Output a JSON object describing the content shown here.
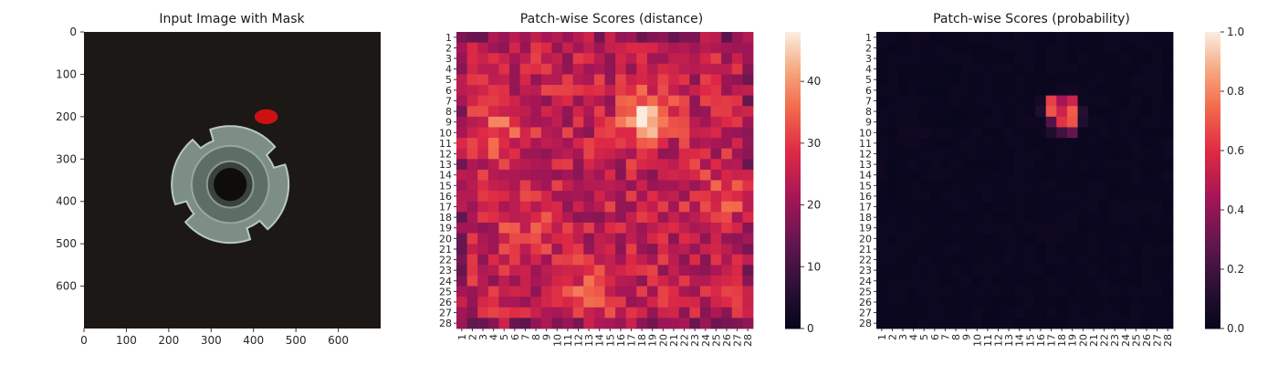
{
  "figure": {
    "panels": [
      {
        "title": "Input Image with Mask"
      },
      {
        "title": "Patch-wise Scores (distance)"
      },
      {
        "title": "Patch-wise Scores (probability)"
      }
    ]
  },
  "chart_data": [
    {
      "type": "image",
      "title": "Input Image with Mask",
      "xlim": [
        0,
        700
      ],
      "ylim": [
        700,
        0
      ],
      "xticks": [
        0,
        100,
        200,
        300,
        400,
        500,
        600
      ],
      "yticks": [
        0,
        100,
        200,
        300,
        400,
        500,
        600
      ],
      "content": "metal nut photograph on dark background",
      "mask": {
        "color": "#cc1111",
        "center": [
          430,
          200
        ],
        "approx_size": [
          55,
          35
        ]
      }
    },
    {
      "type": "heatmap",
      "title": "Patch-wise Scores (distance)",
      "rows": 28,
      "cols": 28,
      "row_labels": [
        "1",
        "2",
        "3",
        "4",
        "5",
        "6",
        "7",
        "8",
        "9",
        "10",
        "11",
        "12",
        "13",
        "14",
        "15",
        "16",
        "17",
        "18",
        "19",
        "20",
        "21",
        "22",
        "23",
        "24",
        "25",
        "26",
        "27",
        "28"
      ],
      "col_labels": [
        "1",
        "2",
        "3",
        "4",
        "5",
        "6",
        "7",
        "8",
        "9",
        "10",
        "11",
        "12",
        "13",
        "14",
        "15",
        "16",
        "17",
        "18",
        "19",
        "20",
        "21",
        "22",
        "23",
        "24",
        "25",
        "26",
        "27",
        "28"
      ],
      "colorbar": {
        "min": 0,
        "max": 48,
        "ticks": [
          0,
          10,
          20,
          30,
          40
        ],
        "colormap": "rocket"
      },
      "base_level": 25,
      "hotspots": [
        {
          "row": 8.5,
          "col": 18.5,
          "peak": 47,
          "sigma": 1.6
        },
        {
          "row": 10,
          "col": 4.5,
          "peak": 33,
          "sigma": 2.2
        },
        {
          "row": 25,
          "col": 13,
          "peak": 32,
          "sigma": 1.8
        },
        {
          "row": 16,
          "col": 26,
          "peak": 31,
          "sigma": 2.0
        },
        {
          "row": 19,
          "col": 7,
          "peak": 30,
          "sigma": 2.0
        }
      ]
    },
    {
      "type": "heatmap",
      "title": "Patch-wise Scores (probability)",
      "rows": 28,
      "cols": 28,
      "row_labels": [
        "1",
        "2",
        "3",
        "4",
        "5",
        "6",
        "7",
        "8",
        "9",
        "10",
        "11",
        "12",
        "13",
        "14",
        "15",
        "16",
        "17",
        "18",
        "19",
        "20",
        "21",
        "22",
        "23",
        "24",
        "25",
        "26",
        "27",
        "28"
      ],
      "col_labels": [
        "1",
        "2",
        "3",
        "4",
        "5",
        "6",
        "7",
        "8",
        "9",
        "10",
        "11",
        "12",
        "13",
        "14",
        "15",
        "16",
        "17",
        "18",
        "19",
        "20",
        "21",
        "22",
        "23",
        "24",
        "25",
        "26",
        "27",
        "28"
      ],
      "colorbar": {
        "min": 0.0,
        "max": 1.0,
        "ticks": [
          "0.0",
          "0.2",
          "0.4",
          "0.6",
          "0.8",
          "1.0"
        ],
        "colormap": "rocket"
      },
      "base_level": 0.02,
      "cells": [
        {
          "row": 7,
          "col": 17,
          "value": 0.65
        },
        {
          "row": 7,
          "col": 18,
          "value": 0.45
        },
        {
          "row": 7,
          "col": 19,
          "value": 0.55
        },
        {
          "row": 8,
          "col": 17,
          "value": 0.7
        },
        {
          "row": 8,
          "col": 18,
          "value": 0.55
        },
        {
          "row": 8,
          "col": 19,
          "value": 0.72
        },
        {
          "row": 9,
          "col": 18,
          "value": 0.62
        },
        {
          "row": 9,
          "col": 19,
          "value": 0.7
        },
        {
          "row": 9,
          "col": 17,
          "value": 0.25
        },
        {
          "row": 10,
          "col": 18,
          "value": 0.2
        },
        {
          "row": 10,
          "col": 19,
          "value": 0.3
        },
        {
          "row": 10,
          "col": 17,
          "value": 0.1
        },
        {
          "row": 8,
          "col": 16,
          "value": 0.1
        },
        {
          "row": 8,
          "col": 20,
          "value": 0.12
        },
        {
          "row": 9,
          "col": 20,
          "value": 0.1
        },
        {
          "row": 7,
          "col": 16,
          "value": 0.06
        },
        {
          "row": 6,
          "col": 18,
          "value": 0.05
        },
        {
          "row": 6,
          "col": 19,
          "value": 0.05
        },
        {
          "row": 10,
          "col": 4,
          "value": 0.05
        },
        {
          "row": 10,
          "col": 5,
          "value": 0.05
        }
      ]
    }
  ]
}
